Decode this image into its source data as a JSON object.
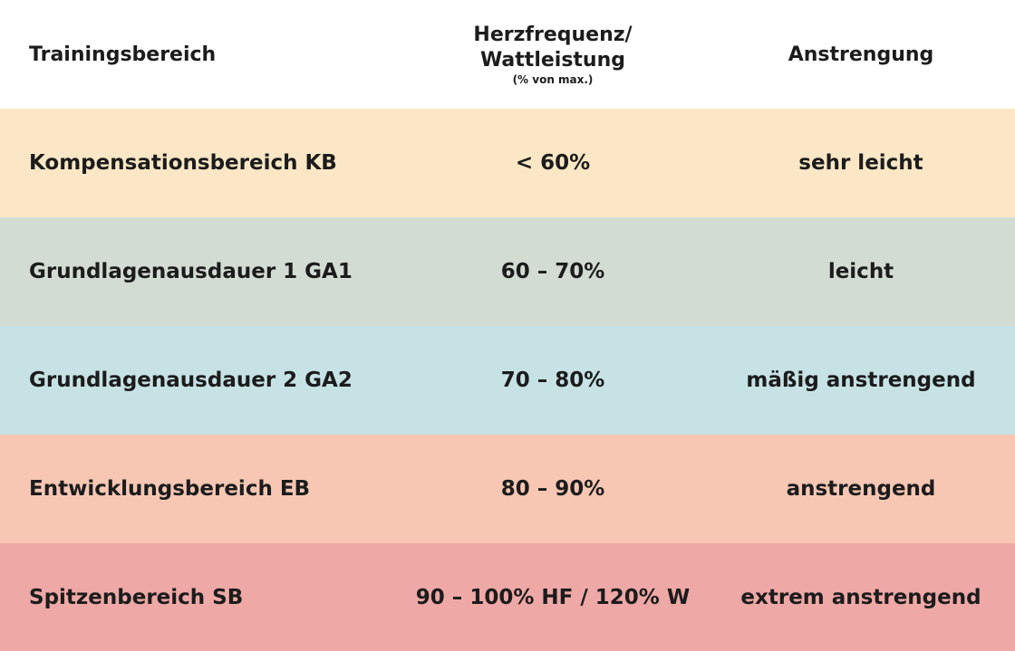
{
  "header": {
    "col1": "Trainingsbereich",
    "col2_line1": "Herzfrequenz/",
    "col2_line2": "Wattleistung",
    "col2_sub": "(% von max.)",
    "col3": "Anstrengung"
  },
  "rows": [
    {
      "zone": "Kompensationsbereich KB",
      "range": "< 60%",
      "effort": "sehr leicht",
      "color": "#fbe7c5"
    },
    {
      "zone": "Grundlagenausdauer 1 GA1",
      "range": "60 – 70%",
      "effort": "leicht",
      "color": "#d3dcd3"
    },
    {
      "zone": "Grundlagenausdauer 2 GA2",
      "range": "70 – 80%",
      "effort": "mäßig anstrengend",
      "color": "#c6e2e5"
    },
    {
      "zone": "Entwicklungsbereich EB",
      "range": "80 – 90%",
      "effort": "anstrengend",
      "color": "#f7c7b4"
    },
    {
      "zone": "Spitzenbereich SB",
      "range": "90 – 100% HF / 120% W",
      "effort": "extrem anstrengend",
      "color": "#eea8a6"
    }
  ]
}
